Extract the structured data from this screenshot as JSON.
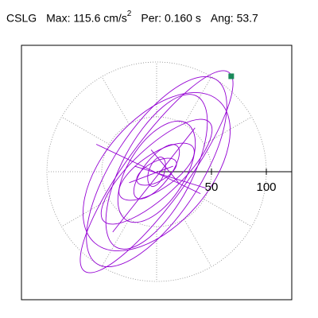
{
  "header": {
    "station": "CSLG",
    "max_label": "Max:",
    "max_value": "115.6 cm/s",
    "max_unit_exp": "2",
    "period_label": "Per:",
    "period_value": "0.160 s",
    "angle_label": "Ang:",
    "angle_value": "53.7"
  },
  "chart_data": {
    "type": "line",
    "chart_kind": "polar-particle-motion",
    "xlim": [
      -120,
      120
    ],
    "ylim": [
      -120,
      120
    ],
    "radial_ticks": [
      50,
      100
    ],
    "radial_tick_labels": [
      "50",
      "100"
    ],
    "grid": true,
    "grid_style": "dotted",
    "angular_grid_step_deg": 30,
    "max_point_marker": {
      "x": 68,
      "y": 87
    },
    "ellipses": [
      {
        "rx": 112,
        "ry": 28,
        "angle": 54
      },
      {
        "rx": 100,
        "ry": 40,
        "angle": 57
      },
      {
        "rx": 86,
        "ry": 48,
        "angle": 49
      },
      {
        "rx": 78,
        "ry": 32,
        "angle": 62
      },
      {
        "rx": 66,
        "ry": 22,
        "angle": 43
      },
      {
        "rx": 52,
        "ry": 26,
        "angle": 58
      },
      {
        "rx": 40,
        "ry": 16,
        "angle": 34
      },
      {
        "rx": 30,
        "ry": 12,
        "angle": 52
      },
      {
        "rx": 20,
        "ry": 9,
        "angle": 28
      },
      {
        "rx": 14,
        "ry": 7,
        "angle": 70
      }
    ],
    "strokes": [
      {
        "x1": -55,
        "y1": 25,
        "x2": 40,
        "y2": -20
      },
      {
        "x1": -40,
        "y1": -55,
        "x2": 35,
        "y2": 40
      },
      {
        "x1": -20,
        "y1": 5,
        "x2": 45,
        "y2": -15
      },
      {
        "x1": -5,
        "y1": 20,
        "x2": 20,
        "y2": -10
      },
      {
        "x1": -25,
        "y1": -10,
        "x2": 15,
        "y2": 5
      }
    ],
    "colors": {
      "trace": "#9400d3",
      "marker": "#1a8a5a",
      "axis": "#000000",
      "grid": "#888888"
    }
  }
}
